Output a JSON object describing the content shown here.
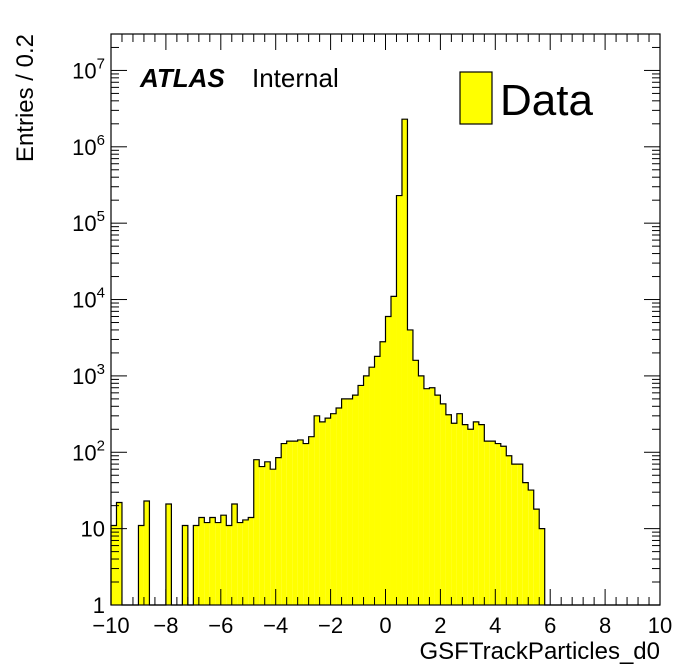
{
  "labels": {
    "atlas": "ATLAS",
    "status": "Internal"
  },
  "legend": {
    "entries": [
      "Data"
    ]
  },
  "colors": {
    "fill": "#ffff00",
    "line": "#000000"
  },
  "chart_data": {
    "type": "bar",
    "xlabel": "GSFTrackParticles_d0",
    "ylabel": "Entries / 0.2",
    "xlim": [
      -10,
      10
    ],
    "ylim": [
      1,
      30000000
    ],
    "yscale": "log",
    "bin_width": 0.2,
    "grid": false,
    "legend_position": "top-right",
    "x_ticks": [
      -10,
      -8,
      -6,
      -4,
      -2,
      0,
      2,
      4,
      6,
      8,
      10
    ],
    "x_tick_labels": [
      "−10",
      "−8",
      "−6",
      "−4",
      "−2",
      "0",
      "2",
      "4",
      "6",
      "8",
      "10"
    ],
    "y_ticks": [
      1,
      10,
      100,
      1000,
      10000,
      100000,
      1000000,
      10000000
    ],
    "y_tick_labels": [
      {
        "text": "1"
      },
      {
        "text": "10"
      },
      {
        "base": "10",
        "exp": "2"
      },
      {
        "base": "10",
        "exp": "3"
      },
      {
        "base": "10",
        "exp": "4"
      },
      {
        "base": "10",
        "exp": "5"
      },
      {
        "base": "10",
        "exp": "6"
      },
      {
        "base": "10",
        "exp": "7"
      }
    ],
    "series": [
      {
        "name": "Data",
        "x_low": [
          -10.0,
          -9.8,
          -9.6,
          -9.4,
          -9.2,
          -9.0,
          -8.8,
          -8.6,
          -8.4,
          -8.2,
          -8.0,
          -7.8,
          -7.6,
          -7.4,
          -7.2,
          -7.0,
          -6.8,
          -6.6,
          -6.4,
          -6.2,
          -6.0,
          -5.8,
          -5.6,
          -5.4,
          -5.2,
          -5.0,
          -4.8,
          -4.6,
          -4.4,
          -4.2,
          -4.0,
          -3.8,
          -3.6,
          -3.4,
          -3.2,
          -3.0,
          -2.8,
          -2.6,
          -2.4,
          -2.2,
          -2.0,
          -1.8,
          -1.6,
          -1.4,
          -1.2,
          -1.0,
          -0.8,
          -0.6,
          -0.4,
          -0.2,
          0.0,
          0.2,
          0.4,
          0.6,
          0.8,
          1.0,
          1.2,
          1.4,
          1.6,
          1.8,
          2.0,
          2.2,
          2.4,
          2.6,
          2.8,
          3.0,
          3.2,
          3.4,
          3.6,
          3.8,
          4.0,
          4.2,
          4.4,
          4.6,
          4.8,
          5.0,
          5.2,
          5.4,
          5.6,
          5.8,
          6.0,
          6.2,
          6.4,
          6.6,
          6.8,
          7.0,
          7.2,
          7.4,
          7.6,
          7.8,
          8.0,
          8.2,
          8.4,
          8.6,
          8.8,
          9.0,
          9.2,
          9.4,
          9.6,
          9.8
        ],
        "values": [
          11,
          22,
          1,
          1,
          1,
          11,
          23,
          1,
          1,
          1,
          21,
          1,
          1,
          11,
          1,
          11,
          14,
          12,
          14,
          12,
          15,
          11,
          21,
          12,
          13,
          14,
          80,
          65,
          75,
          60,
          85,
          130,
          140,
          140,
          145,
          130,
          160,
          300,
          250,
          280,
          320,
          380,
          500,
          500,
          560,
          750,
          1000,
          1300,
          1800,
          2800,
          6000,
          11000,
          230000,
          2300000,
          4000,
          1600,
          1000,
          680,
          700,
          560,
          430,
          310,
          240,
          320,
          230,
          200,
          250,
          230,
          140,
          140,
          130,
          120,
          90,
          70,
          70,
          40,
          32,
          18,
          10,
          1,
          1,
          1,
          1,
          1,
          1,
          1,
          1,
          1,
          1,
          1,
          1,
          1,
          1,
          1,
          1,
          1,
          1,
          1,
          1,
          1
        ]
      }
    ]
  }
}
